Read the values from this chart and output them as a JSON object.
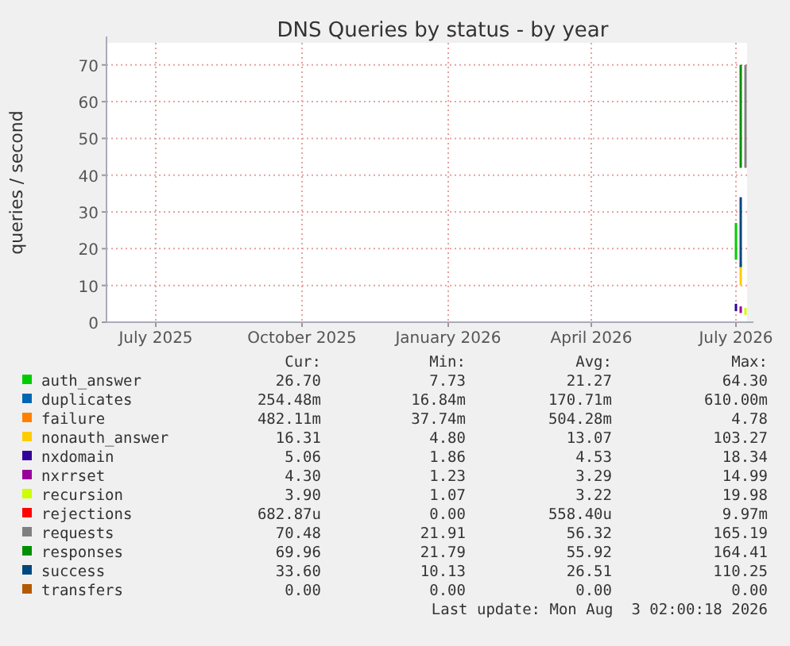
{
  "chart_data": {
    "type": "line",
    "title": "DNS Queries by status - by year",
    "ylabel": "queries / second",
    "xlim": [
      "2025-05-31",
      "2026-07-08"
    ],
    "ylim": [
      0,
      76
    ],
    "xticks": [
      {
        "value": "2025-07-01",
        "label": "July 2025"
      },
      {
        "value": "2025-10-01",
        "label": "October 2025"
      },
      {
        "value": "2026-01-01",
        "label": "January 2026"
      },
      {
        "value": "2026-04-01",
        "label": "April 2026"
      },
      {
        "value": "2026-07-01",
        "label": "July 2026"
      }
    ],
    "yticks": [
      0,
      10,
      20,
      30,
      40,
      50,
      60,
      70
    ],
    "grid": true,
    "legend": "bottom",
    "x": [
      "2026-07-04",
      "2026-07-04"
    ],
    "series": [
      {
        "name": "auth_answer",
        "color": "#00cc00",
        "x": [
          "2026-07-01",
          "2026-07-01"
        ],
        "values": [
          17,
          27
        ]
      },
      {
        "name": "duplicates",
        "color": "#0066b3",
        "values": [
          null,
          null
        ]
      },
      {
        "name": "failure",
        "color": "#ff8000",
        "values": [
          null,
          null
        ]
      },
      {
        "name": "nonauth_answer",
        "color": "#ffcc00",
        "values": [
          10,
          16
        ]
      },
      {
        "name": "nxdomain",
        "color": "#330099",
        "x": [
          "2026-07-01",
          "2026-07-01"
        ],
        "values": [
          3,
          5
        ]
      },
      {
        "name": "nxrrset",
        "color": "#990099",
        "values": [
          2.5,
          4.3
        ]
      },
      {
        "name": "recursion",
        "color": "#ccff00",
        "x": [
          "2026-07-07",
          "2026-07-07"
        ],
        "values": [
          2,
          3.9
        ]
      },
      {
        "name": "rejections",
        "color": "#ff0000",
        "values": [
          null,
          null
        ]
      },
      {
        "name": "requests",
        "color": "#808080",
        "x": [
          "2026-07-07",
          "2026-07-07"
        ],
        "values": [
          42,
          70
        ]
      },
      {
        "name": "responses",
        "color": "#008f00",
        "values": [
          42,
          70
        ]
      },
      {
        "name": "success",
        "color": "#00487d",
        "values": [
          15,
          34
        ]
      },
      {
        "name": "transfers",
        "color": "#b35a00",
        "values": [
          null,
          null
        ]
      }
    ],
    "annotations": [
      "Cur:",
      "Min:",
      "Avg:",
      "Max:",
      "26.70",
      "7.73",
      "21.27",
      "64.30",
      "254.48m",
      "16.84m",
      "170.71m",
      "610.00m",
      "482.11m",
      "37.74m",
      "504.28m",
      "4.78",
      "16.31",
      "4.80",
      "13.07",
      "103.27",
      "5.06",
      "1.86",
      "4.53",
      "18.34",
      "4.30",
      "1.23",
      "3.29",
      "14.99",
      "3.90",
      "1.07",
      "3.22",
      "19.98",
      "682.87u",
      "0.00",
      "558.40u",
      "9.97m",
      "70.48",
      "21.91",
      "56.32",
      "165.19",
      "69.96",
      "21.79",
      "55.92",
      "164.41",
      "33.60",
      "10.13",
      "26.51",
      "110.25",
      "0.00",
      "0.00",
      "0.00",
      "0.00",
      "Last update: Mon Aug  3 02:00:18 2026"
    ]
  }
}
